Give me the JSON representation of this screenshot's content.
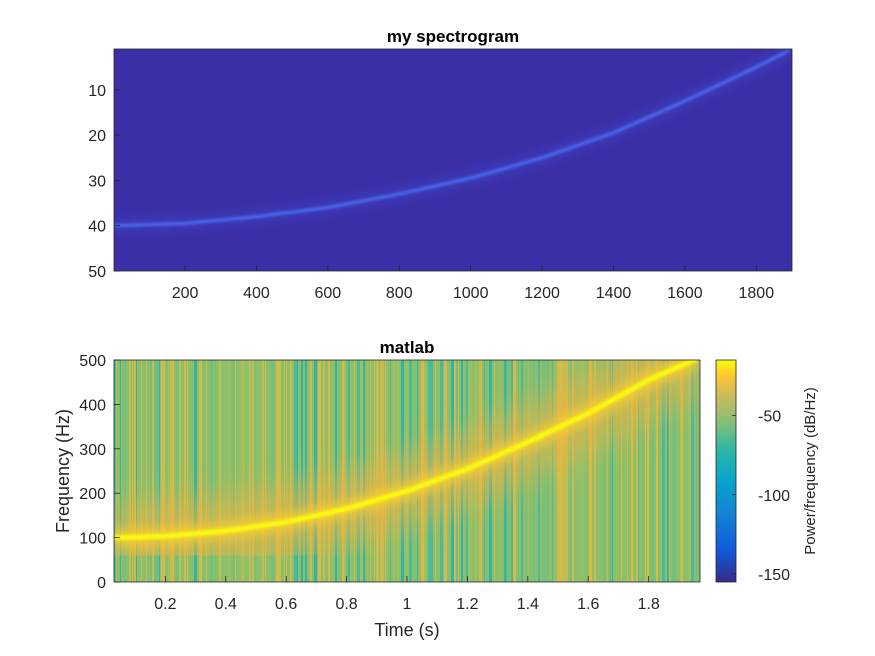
{
  "chart_data": [
    {
      "type": "heatmap",
      "title": "my spectrogram",
      "xlabel": "",
      "ylabel": "",
      "xlim": [
        1,
        1900
      ],
      "ylim": [
        1,
        50
      ],
      "y_reversed": true,
      "x_ticks": [
        200,
        400,
        600,
        800,
        1000,
        1200,
        1400,
        1600,
        1800
      ],
      "y_ticks": [
        10,
        20,
        30,
        40,
        50
      ],
      "background_color": "#3b2fa8",
      "ridge_color": "#4a6cf5",
      "ridge": {
        "x": [
          1,
          200,
          400,
          600,
          800,
          1000,
          1200,
          1400,
          1600,
          1800,
          1900
        ],
        "y": [
          40,
          39.5,
          38,
          36,
          33,
          29.5,
          25,
          19.5,
          12.5,
          5,
          1
        ]
      }
    },
    {
      "type": "heatmap",
      "title": "matlab",
      "xlabel": "Time (s)",
      "ylabel": "Frequency (Hz)",
      "xlim": [
        0.03,
        1.97
      ],
      "ylim": [
        0,
        500
      ],
      "x_ticks": [
        "0.2",
        "0.4",
        "0.6",
        "0.8",
        "1",
        "1.2",
        "1.4",
        "1.6",
        "1.8"
      ],
      "y_ticks": [
        "0",
        "100",
        "200",
        "300",
        "400",
        "500"
      ],
      "colorbar": {
        "label": "Power/frequency (dB/Hz)",
        "ticks": [
          "-50",
          "-100",
          "-150"
        ],
        "range": [
          -155,
          -15
        ],
        "colormap": "parula"
      },
      "ridge": {
        "x": [
          0.05,
          0.2,
          0.4,
          0.6,
          0.8,
          1.0,
          1.2,
          1.4,
          1.6,
          1.8,
          1.95
        ],
        "y": [
          100,
          103,
          115,
          135,
          165,
          205,
          255,
          315,
          380,
          455,
          500
        ]
      }
    }
  ]
}
